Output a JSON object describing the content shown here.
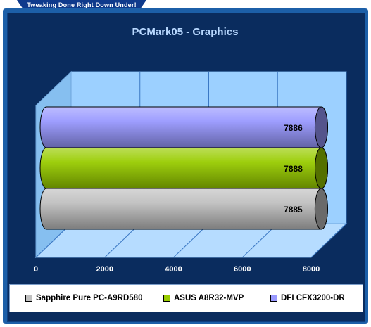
{
  "header": {
    "tagline": "Tweaking Done Right Down Under!"
  },
  "colors": {
    "background": "#0a2c5e",
    "wall": "#9cd0ff",
    "accent": "#1c5fa8"
  },
  "chart_data": {
    "type": "bar",
    "orientation": "horizontal",
    "three_d": true,
    "title": "PCMark05 - Graphics",
    "xlabel": "",
    "ylabel": "",
    "xlim": [
      0,
      8000
    ],
    "xticks": [
      0,
      2000,
      4000,
      6000,
      8000
    ],
    "grid": true,
    "legend_position": "bottom",
    "series": [
      {
        "name": "Sapphire Pure PC-A9RD580",
        "values": [
          7885
        ],
        "value_label": "7885",
        "color": "#c0c0c0"
      },
      {
        "name": "ASUS A8R32-MVP",
        "values": [
          7888
        ],
        "value_label": "7888",
        "color": "#99cc00"
      },
      {
        "name": "DFI CFX3200-DR",
        "values": [
          7886
        ],
        "value_label": "7886",
        "color": "#9999ff"
      }
    ]
  }
}
